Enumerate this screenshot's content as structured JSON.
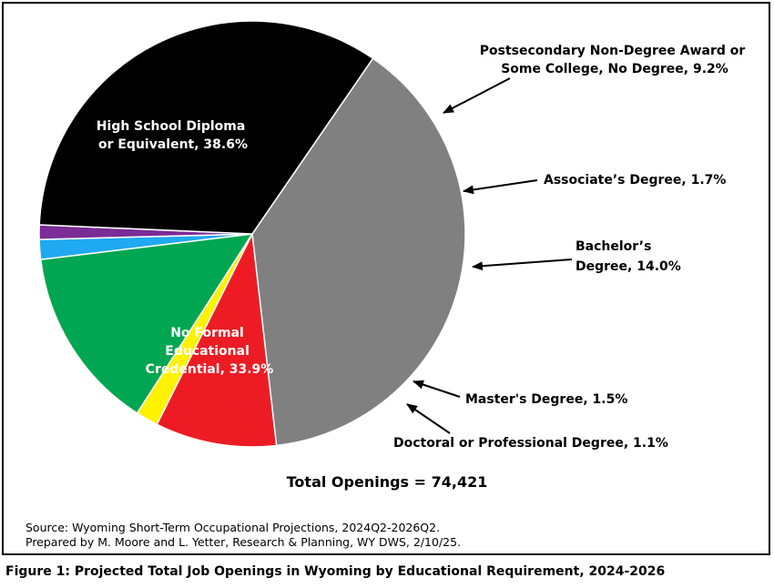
{
  "chart_data": {
    "type": "pie",
    "title": "",
    "slices": [
      {
        "label": "High School Diploma or Equivalent",
        "value": 38.6,
        "color": "#808080"
      },
      {
        "label": "Postsecondary Non-Degree Award or Some College, No Degree",
        "value": 9.2,
        "color": "#ed1c24"
      },
      {
        "label": "Associate’s Degree",
        "value": 1.7,
        "color": "#fff200"
      },
      {
        "label": "Bachelor’s Degree",
        "value": 14.0,
        "color": "#00a651"
      },
      {
        "label": "Master's Degree",
        "value": 1.5,
        "color": "#1fa9f0"
      },
      {
        "label": "Doctoral or Professional Degree",
        "value": 1.1,
        "color": "#7b2c96"
      },
      {
        "label": "No Formal Educational Credential",
        "value": 33.9,
        "color": "#000000"
      }
    ],
    "labels": {
      "hs": [
        "High School Diploma",
        "or Equivalent, 38.6%"
      ],
      "postsec": [
        "Postsecondary Non-Degree Award or",
        "Some College, No Degree, 9.2%"
      ],
      "assoc": [
        "Associate’s Degree, 1.7%"
      ],
      "bach": [
        "Bachelor’s",
        "Degree, 14.0%"
      ],
      "masters": [
        "Master's Degree, 1.5%"
      ],
      "doctoral": [
        "Doctoral or Professional Degree, 1.1%"
      ],
      "noformal": [
        "No Formal",
        "Educational",
        "Credential, 33.9%"
      ]
    }
  },
  "total": "Total Openings = 74,421",
  "source": {
    "line1": "Source: Wyoming Short-Term Occupational Projections, 2024Q2-2026Q2.",
    "line2": "Prepared by M. Moore and L. Yetter, Research & Planning, WY DWS, 2/10/25."
  },
  "caption": "Figure 1: Projected Total Job Openings in Wyoming by Educational Requirement, 2024-2026"
}
